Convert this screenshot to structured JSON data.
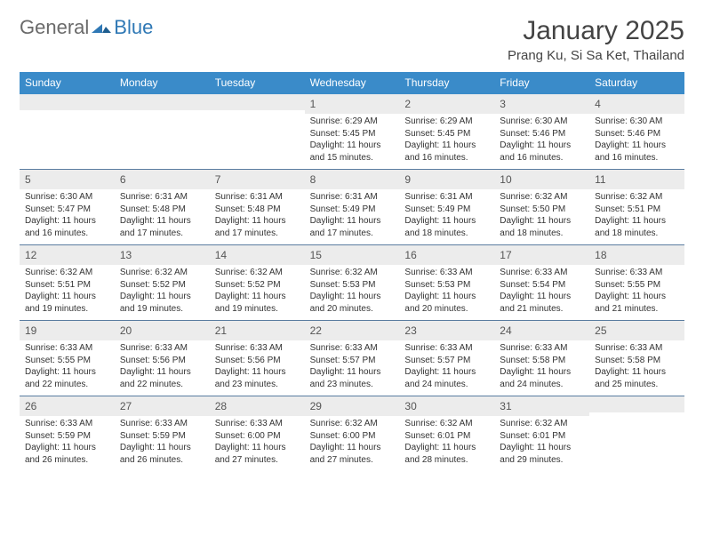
{
  "logo": {
    "part1": "General",
    "part2": "Blue"
  },
  "title": "January 2025",
  "location": "Prang Ku, Si Sa Ket, Thailand",
  "colors": {
    "header_bg": "#3a8bc9",
    "band_bg": "#ececec",
    "week_divider": "#5a7ca0",
    "logo_gray": "#6a6a6a",
    "logo_blue": "#2f78b5"
  },
  "typography": {
    "title_fontsize": 30,
    "location_fontsize": 15,
    "dow_fontsize": 12,
    "daynum_fontsize": 12,
    "body_fontsize": 10
  },
  "daysOfWeek": [
    "Sunday",
    "Monday",
    "Tuesday",
    "Wednesday",
    "Thursday",
    "Friday",
    "Saturday"
  ],
  "weeks": [
    [
      {
        "n": "",
        "sunrise": "",
        "sunset": "",
        "daylight": ""
      },
      {
        "n": "",
        "sunrise": "",
        "sunset": "",
        "daylight": ""
      },
      {
        "n": "",
        "sunrise": "",
        "sunset": "",
        "daylight": ""
      },
      {
        "n": "1",
        "sunrise": "Sunrise: 6:29 AM",
        "sunset": "Sunset: 5:45 PM",
        "daylight": "Daylight: 11 hours and 15 minutes."
      },
      {
        "n": "2",
        "sunrise": "Sunrise: 6:29 AM",
        "sunset": "Sunset: 5:45 PM",
        "daylight": "Daylight: 11 hours and 16 minutes."
      },
      {
        "n": "3",
        "sunrise": "Sunrise: 6:30 AM",
        "sunset": "Sunset: 5:46 PM",
        "daylight": "Daylight: 11 hours and 16 minutes."
      },
      {
        "n": "4",
        "sunrise": "Sunrise: 6:30 AM",
        "sunset": "Sunset: 5:46 PM",
        "daylight": "Daylight: 11 hours and 16 minutes."
      }
    ],
    [
      {
        "n": "5",
        "sunrise": "Sunrise: 6:30 AM",
        "sunset": "Sunset: 5:47 PM",
        "daylight": "Daylight: 11 hours and 16 minutes."
      },
      {
        "n": "6",
        "sunrise": "Sunrise: 6:31 AM",
        "sunset": "Sunset: 5:48 PM",
        "daylight": "Daylight: 11 hours and 17 minutes."
      },
      {
        "n": "7",
        "sunrise": "Sunrise: 6:31 AM",
        "sunset": "Sunset: 5:48 PM",
        "daylight": "Daylight: 11 hours and 17 minutes."
      },
      {
        "n": "8",
        "sunrise": "Sunrise: 6:31 AM",
        "sunset": "Sunset: 5:49 PM",
        "daylight": "Daylight: 11 hours and 17 minutes."
      },
      {
        "n": "9",
        "sunrise": "Sunrise: 6:31 AM",
        "sunset": "Sunset: 5:49 PM",
        "daylight": "Daylight: 11 hours and 18 minutes."
      },
      {
        "n": "10",
        "sunrise": "Sunrise: 6:32 AM",
        "sunset": "Sunset: 5:50 PM",
        "daylight": "Daylight: 11 hours and 18 minutes."
      },
      {
        "n": "11",
        "sunrise": "Sunrise: 6:32 AM",
        "sunset": "Sunset: 5:51 PM",
        "daylight": "Daylight: 11 hours and 18 minutes."
      }
    ],
    [
      {
        "n": "12",
        "sunrise": "Sunrise: 6:32 AM",
        "sunset": "Sunset: 5:51 PM",
        "daylight": "Daylight: 11 hours and 19 minutes."
      },
      {
        "n": "13",
        "sunrise": "Sunrise: 6:32 AM",
        "sunset": "Sunset: 5:52 PM",
        "daylight": "Daylight: 11 hours and 19 minutes."
      },
      {
        "n": "14",
        "sunrise": "Sunrise: 6:32 AM",
        "sunset": "Sunset: 5:52 PM",
        "daylight": "Daylight: 11 hours and 19 minutes."
      },
      {
        "n": "15",
        "sunrise": "Sunrise: 6:32 AM",
        "sunset": "Sunset: 5:53 PM",
        "daylight": "Daylight: 11 hours and 20 minutes."
      },
      {
        "n": "16",
        "sunrise": "Sunrise: 6:33 AM",
        "sunset": "Sunset: 5:53 PM",
        "daylight": "Daylight: 11 hours and 20 minutes."
      },
      {
        "n": "17",
        "sunrise": "Sunrise: 6:33 AM",
        "sunset": "Sunset: 5:54 PM",
        "daylight": "Daylight: 11 hours and 21 minutes."
      },
      {
        "n": "18",
        "sunrise": "Sunrise: 6:33 AM",
        "sunset": "Sunset: 5:55 PM",
        "daylight": "Daylight: 11 hours and 21 minutes."
      }
    ],
    [
      {
        "n": "19",
        "sunrise": "Sunrise: 6:33 AM",
        "sunset": "Sunset: 5:55 PM",
        "daylight": "Daylight: 11 hours and 22 minutes."
      },
      {
        "n": "20",
        "sunrise": "Sunrise: 6:33 AM",
        "sunset": "Sunset: 5:56 PM",
        "daylight": "Daylight: 11 hours and 22 minutes."
      },
      {
        "n": "21",
        "sunrise": "Sunrise: 6:33 AM",
        "sunset": "Sunset: 5:56 PM",
        "daylight": "Daylight: 11 hours and 23 minutes."
      },
      {
        "n": "22",
        "sunrise": "Sunrise: 6:33 AM",
        "sunset": "Sunset: 5:57 PM",
        "daylight": "Daylight: 11 hours and 23 minutes."
      },
      {
        "n": "23",
        "sunrise": "Sunrise: 6:33 AM",
        "sunset": "Sunset: 5:57 PM",
        "daylight": "Daylight: 11 hours and 24 minutes."
      },
      {
        "n": "24",
        "sunrise": "Sunrise: 6:33 AM",
        "sunset": "Sunset: 5:58 PM",
        "daylight": "Daylight: 11 hours and 24 minutes."
      },
      {
        "n": "25",
        "sunrise": "Sunrise: 6:33 AM",
        "sunset": "Sunset: 5:58 PM",
        "daylight": "Daylight: 11 hours and 25 minutes."
      }
    ],
    [
      {
        "n": "26",
        "sunrise": "Sunrise: 6:33 AM",
        "sunset": "Sunset: 5:59 PM",
        "daylight": "Daylight: 11 hours and 26 minutes."
      },
      {
        "n": "27",
        "sunrise": "Sunrise: 6:33 AM",
        "sunset": "Sunset: 5:59 PM",
        "daylight": "Daylight: 11 hours and 26 minutes."
      },
      {
        "n": "28",
        "sunrise": "Sunrise: 6:33 AM",
        "sunset": "Sunset: 6:00 PM",
        "daylight": "Daylight: 11 hours and 27 minutes."
      },
      {
        "n": "29",
        "sunrise": "Sunrise: 6:32 AM",
        "sunset": "Sunset: 6:00 PM",
        "daylight": "Daylight: 11 hours and 27 minutes."
      },
      {
        "n": "30",
        "sunrise": "Sunrise: 6:32 AM",
        "sunset": "Sunset: 6:01 PM",
        "daylight": "Daylight: 11 hours and 28 minutes."
      },
      {
        "n": "31",
        "sunrise": "Sunrise: 6:32 AM",
        "sunset": "Sunset: 6:01 PM",
        "daylight": "Daylight: 11 hours and 29 minutes."
      },
      {
        "n": "",
        "sunrise": "",
        "sunset": "",
        "daylight": ""
      }
    ]
  ]
}
